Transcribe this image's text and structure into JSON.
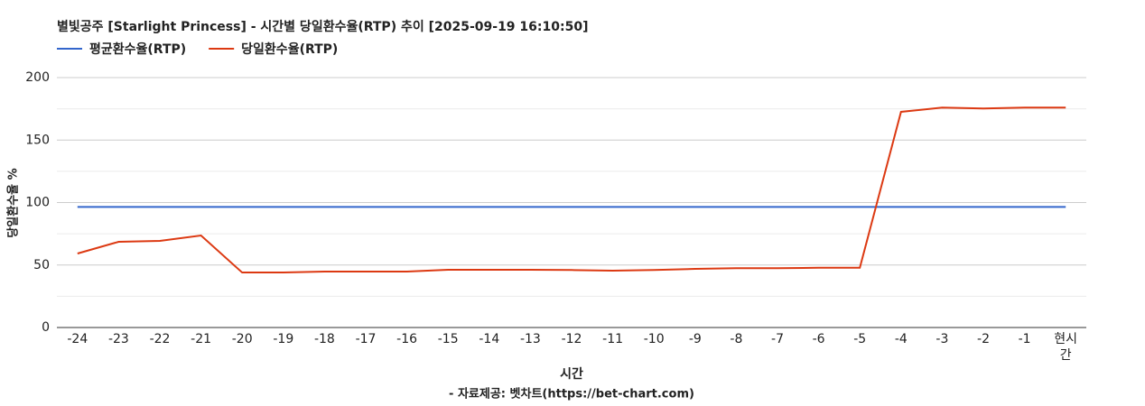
{
  "chart_data": {
    "type": "line",
    "title": "별빛공주 [Starlight Princess] - 시간별 당일환수율(RTP) 추이 [2025-09-19 16:10:50]",
    "x_label": "시간",
    "y_label": "당일환수율 %",
    "source": "- 자료제공: 벳차트(https://bet-chart.com)",
    "categories": [
      "-24",
      "-23",
      "-22",
      "-21",
      "-20",
      "-19",
      "-18",
      "-17",
      "-16",
      "-15",
      "-14",
      "-13",
      "-12",
      "-11",
      "-10",
      "-9",
      "-8",
      "-7",
      "-6",
      "-5",
      "-4",
      "-3",
      "-2",
      "-1",
      "현시간"
    ],
    "series": [
      {
        "name": "평균환수율(RTP)",
        "color": "#3366cc",
        "values": [
          96.5,
          96.5,
          96.5,
          96.5,
          96.5,
          96.5,
          96.5,
          96.5,
          96.5,
          96.5,
          96.5,
          96.5,
          96.5,
          96.5,
          96.5,
          96.5,
          96.5,
          96.5,
          96.5,
          96.5,
          96.5,
          96.5,
          96.5,
          96.5,
          96.5
        ]
      },
      {
        "name": "당일환수율(RTP)",
        "color": "#dc3912",
        "values": [
          59.2,
          68.6,
          69.3,
          73.6,
          44,
          44,
          44.8,
          44.8,
          44.8,
          46.2,
          46.2,
          46.2,
          46,
          45.5,
          46,
          46.9,
          47.5,
          47.5,
          47.8,
          47.8,
          172.6,
          176,
          175.3,
          176,
          176
        ]
      }
    ],
    "ylim": [
      0,
      200
    ],
    "yticks": [
      0,
      50,
      100,
      150,
      200
    ],
    "grid": true
  }
}
